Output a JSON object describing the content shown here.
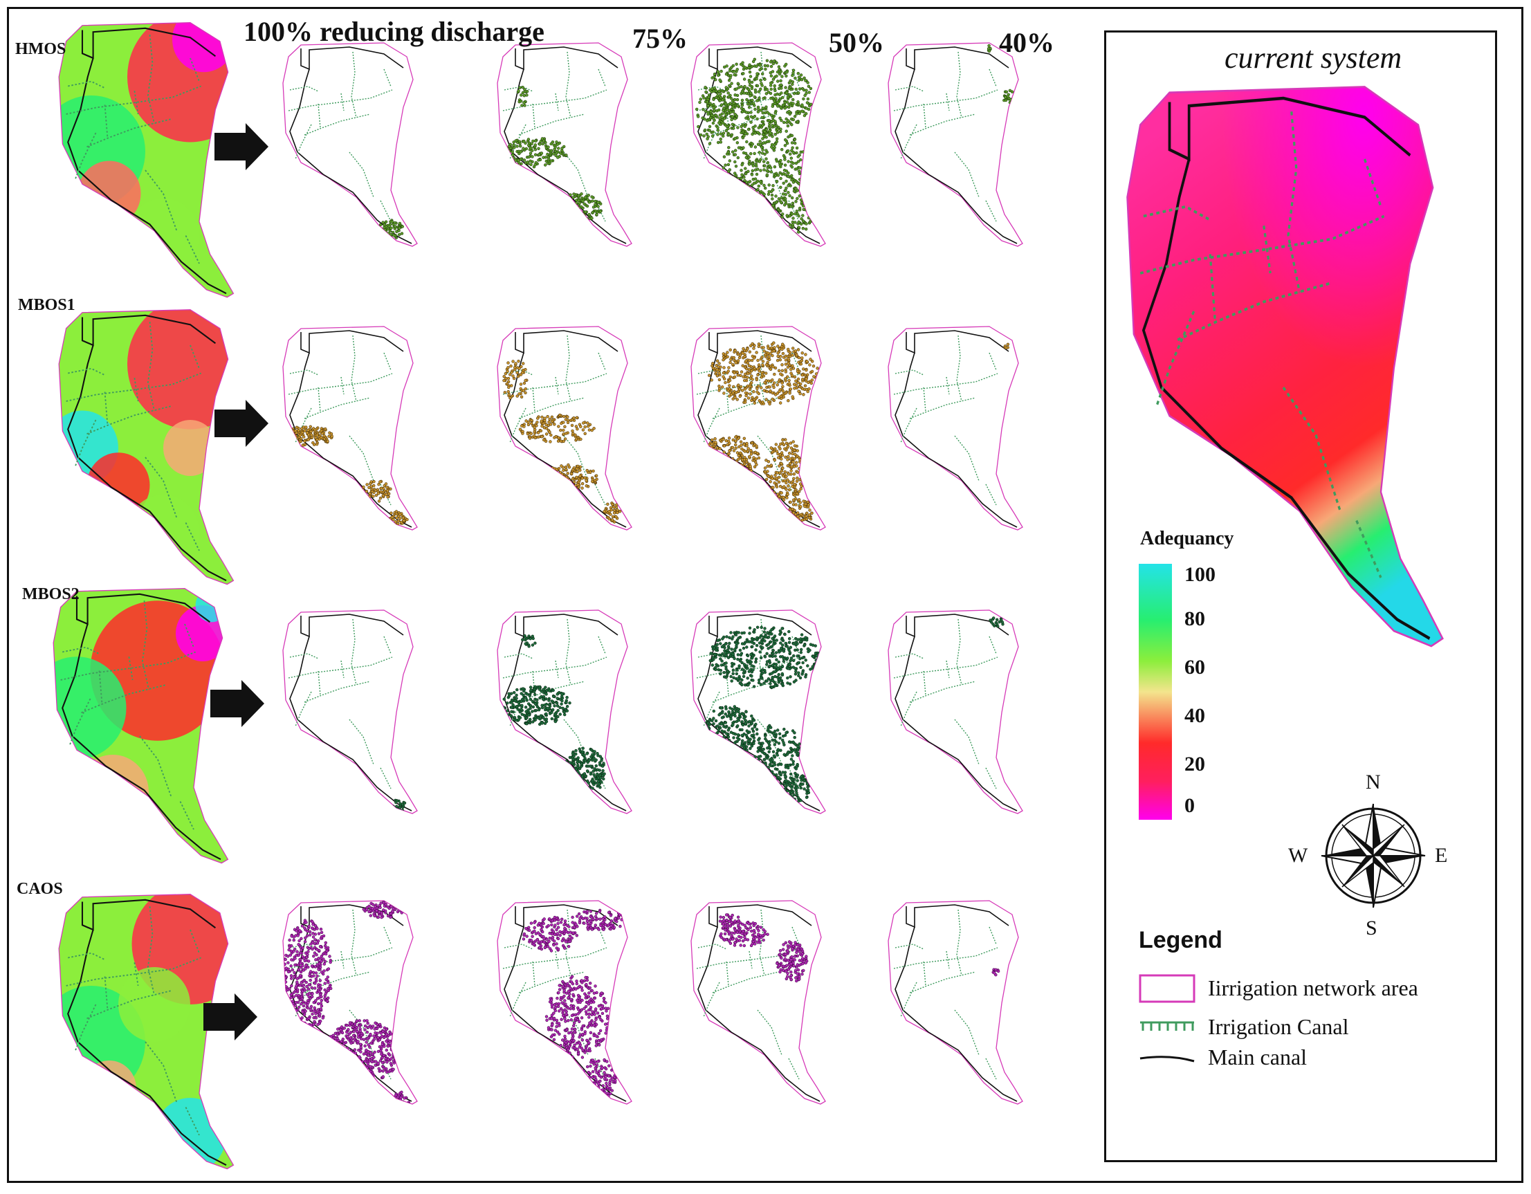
{
  "headers": {
    "col1": "100% reducing discharge",
    "col2": "75%",
    "col3": "50%",
    "col4": "40%"
  },
  "rows": [
    {
      "label": "HMOS",
      "dot_color": "#5e9c2a",
      "dot_stroke": "#1d3a08"
    },
    {
      "label": "MBOS1",
      "dot_color": "#c9962f",
      "dot_stroke": "#4a3006"
    },
    {
      "label": "MBOS2",
      "dot_color": "#1f6b3c",
      "dot_stroke": "#0a2a14"
    },
    {
      "label": "CAOS",
      "dot_color": "#b02ab5",
      "dot_stroke": "#4a064d"
    }
  ],
  "panel": {
    "title": "current system",
    "colorbar_title": "Adequancy",
    "ticks": [
      "100",
      "80",
      "60",
      "40",
      "20",
      "0"
    ],
    "compass": {
      "n": "N",
      "s": "S",
      "e": "E",
      "w": "W"
    },
    "legend_title": "Legend",
    "legend_items": [
      {
        "label": "Iirrigation network area"
      },
      {
        "label": "Irrigation Canal"
      },
      {
        "label": "Main canal"
      }
    ]
  },
  "colors": {
    "boundary": "#d63ab8",
    "canal": "#3f9b5e",
    "main_canal": "#111111"
  }
}
